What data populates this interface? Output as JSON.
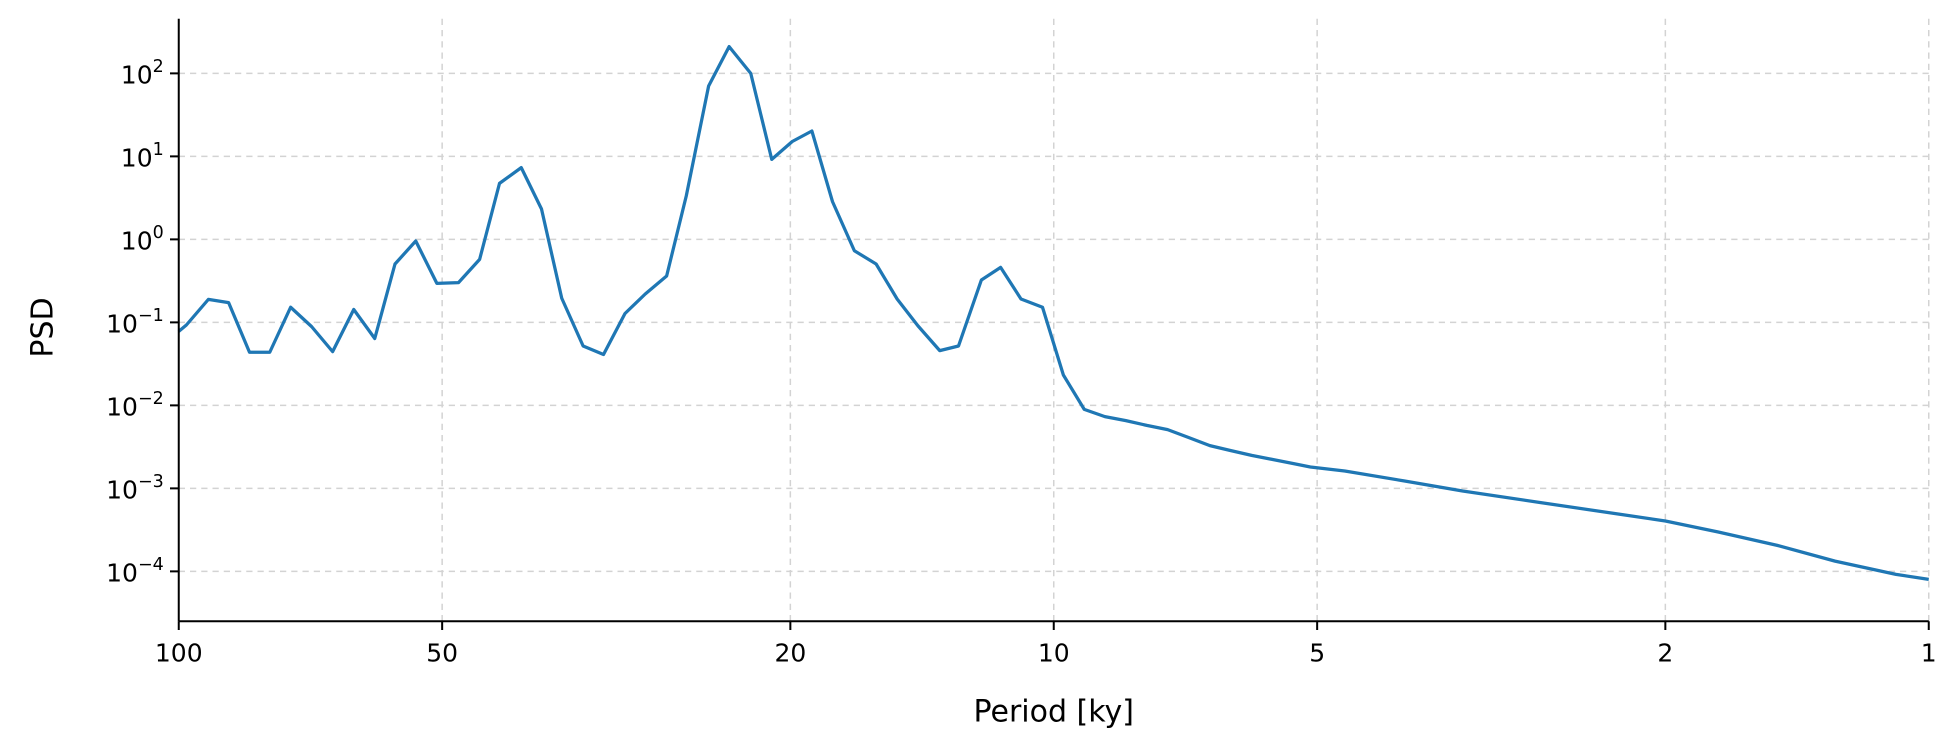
{
  "chart_data": {
    "type": "line",
    "title": "",
    "xlabel": "Period [ky]",
    "ylabel": "PSD",
    "x_scale": "log",
    "x_reversed": true,
    "y_scale": "log",
    "xlim": [
      100,
      1
    ],
    "ylim": [
      2.5e-05,
      460
    ],
    "grid": true,
    "line_color": "#1f77b4",
    "grid_color": "#d3d3d3",
    "x_ticks": [
      {
        "value": 100,
        "label": "100"
      },
      {
        "value": 50,
        "label": "50"
      },
      {
        "value": 20,
        "label": "20"
      },
      {
        "value": 10,
        "label": "10"
      },
      {
        "value": 5,
        "label": "5"
      },
      {
        "value": 2,
        "label": "2"
      },
      {
        "value": 1,
        "label": "1"
      }
    ],
    "y_ticks": [
      {
        "value": 100,
        "base": "10",
        "exp": "2"
      },
      {
        "value": 10,
        "base": "10",
        "exp": "1"
      },
      {
        "value": 1,
        "base": "10",
        "exp": "0"
      },
      {
        "value": 0.1,
        "base": "10",
        "exp": "−1"
      },
      {
        "value": 0.01,
        "base": "10",
        "exp": "−2"
      },
      {
        "value": 0.001,
        "base": "10",
        "exp": "−3"
      },
      {
        "value": 0.0001,
        "base": "10",
        "exp": "−4"
      }
    ],
    "x": [
      100,
      98.0,
      92.5,
      87.7,
      83.0,
      78.7,
      74.5,
      70.5,
      66.7,
      63.1,
      59.7,
      56.6,
      53.6,
      50.7,
      47.9,
      45.3,
      43.0,
      40.6,
      38.5,
      36.5,
      34.5,
      32.7,
      30.9,
      29.3,
      27.7,
      26.3,
      24.8,
      23.5,
      22.2,
      21.0,
      19.9,
      18.9,
      17.9,
      16.9,
      15.96,
      15.1,
      14.3,
      13.5,
      12.85,
      12.1,
      11.5,
      10.9,
      10.3,
      9.75,
      9.23,
      8.74,
      8.27,
      7.83,
      7.41,
      7.02,
      6.63,
      6.29,
      5.94,
      5.61,
      5.32,
      5.09,
      4.65,
      3.98,
      3.41,
      2.77,
      2.25,
      2.0,
      1.74,
      1.49,
      1.28,
      1.09,
      1.0
    ],
    "y": [
      0.078,
      0.093,
      0.189,
      0.173,
      0.0436,
      0.0436,
      0.152,
      0.089,
      0.0444,
      0.143,
      0.064,
      0.505,
      0.955,
      0.295,
      0.301,
      0.574,
      4.73,
      7.32,
      2.32,
      0.195,
      0.052,
      0.041,
      0.128,
      0.22,
      0.362,
      3.33,
      70.5,
      210,
      100,
      9.2,
      15.1,
      20.2,
      2.85,
      0.73,
      0.505,
      0.191,
      0.091,
      0.0457,
      0.052,
      0.324,
      0.46,
      0.191,
      0.152,
      0.0232,
      0.00895,
      0.00732,
      0.00655,
      0.00574,
      0.0051,
      0.00411,
      0.00327,
      0.00287,
      0.0025,
      0.00222,
      0.00199,
      0.00181,
      0.00162,
      0.00123,
      0.00093,
      0.00067,
      0.000486,
      0.000405,
      0.000298,
      0.000206,
      0.000133,
      9.2e-05,
      8e-05
    ]
  }
}
